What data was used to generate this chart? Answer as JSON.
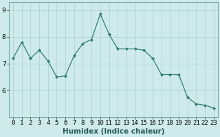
{
  "x": [
    0,
    1,
    2,
    3,
    4,
    5,
    6,
    7,
    8,
    9,
    10,
    11,
    12,
    13,
    14,
    15,
    16,
    17,
    18,
    19,
    20,
    21,
    22,
    23
  ],
  "y": [
    7.2,
    7.8,
    7.2,
    7.5,
    7.1,
    6.5,
    6.55,
    7.3,
    7.75,
    7.9,
    8.85,
    8.1,
    7.55,
    7.55,
    7.55,
    7.5,
    7.2,
    6.6,
    6.6,
    6.6,
    5.75,
    5.5,
    5.45,
    5.35
  ],
  "line_color": "#2e7d6e",
  "bg_color": "#ceeaea",
  "grid_color_major": "#aad0d0",
  "grid_color_minor": "#bcdcdc",
  "xlabel": "Humidex (Indice chaleur)",
  "ylim": [
    5.0,
    9.3
  ],
  "yticks": [
    6,
    7,
    8,
    9
  ],
  "tick_fontsize": 6.5,
  "xlabel_fontsize": 7.5
}
